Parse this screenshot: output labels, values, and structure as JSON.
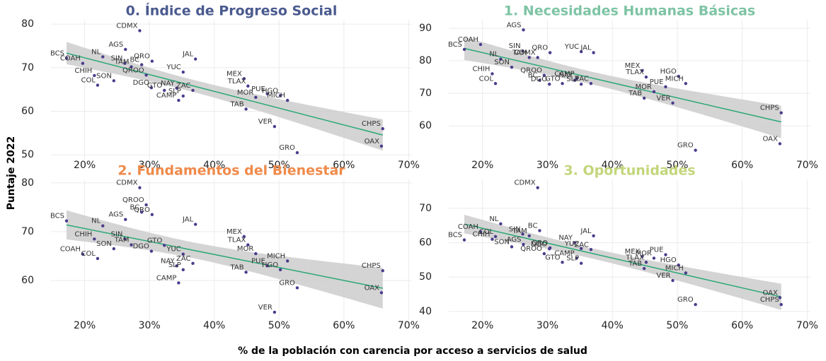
{
  "y_label": "Puntaje 2022",
  "x_label": "% de la población con carencia por acceso a servicios de salud",
  "chart_data": [
    {
      "type": "scatter",
      "title": "0. Índice de Progreso Social",
      "title_color": "#4a5a8f",
      "color": "#4b3b8c",
      "line_color": "#2aa876",
      "band_color": "#cccccc",
      "grid": true,
      "labels": [
        "BCS",
        "COAH",
        "CHIH",
        "COL",
        "NL",
        "SON",
        "SIN",
        "AGS",
        "TAM",
        "CDMX",
        "BC",
        "QROO",
        "QRO",
        "DGO",
        "GTO",
        "NAY",
        "CAMP",
        "SLP",
        "YUC",
        "ZAC",
        "JAL",
        "MEX",
        "TLAX",
        "TAB",
        "MOR",
        "PUE",
        "VER",
        "HGO",
        "MICH",
        "GRO",
        "OAX",
        "CHPS"
      ],
      "x": [
        17.2,
        19.7,
        21.5,
        22,
        22.8,
        24.5,
        26.2,
        26.3,
        27.2,
        28.5,
        28.8,
        29.5,
        30.4,
        30.3,
        32.3,
        34.2,
        34.5,
        35.2,
        35.2,
        36.7,
        37.1,
        44.6,
        45.2,
        44.9,
        46.4,
        48.2,
        49.3,
        50.2,
        51.3,
        52.8,
        65.8,
        66
      ],
      "y": [
        72.2,
        71,
        68.2,
        66,
        72.5,
        67,
        71,
        74.2,
        70.2,
        78.5,
        70.7,
        68.3,
        71.5,
        65.4,
        64.8,
        65.3,
        62.5,
        63.5,
        69,
        64.8,
        72,
        67.5,
        65.8,
        60.5,
        63.2,
        64,
        56.5,
        63.6,
        62.5,
        50.5,
        52,
        56
      ],
      "xlim": [
        14.8,
        70.5
      ],
      "ylim": [
        48.9,
        81
      ],
      "xticks": [
        {
          "value": 20,
          "label": "20%"
        },
        {
          "value": 30,
          "label": "30%"
        },
        {
          "value": 40,
          "label": "40%"
        },
        {
          "value": 50,
          "label": "50%"
        },
        {
          "value": 60,
          "label": "60%"
        },
        {
          "value": 70,
          "label": "70%"
        }
      ],
      "yticks": [
        50,
        60,
        70,
        80
      ]
    },
    {
      "type": "scatter",
      "title": "1. Necesidades Humanas Básicas",
      "title_color": "#7ec4a4",
      "color": "#4b3b8c",
      "line_color": "#2aa876",
      "band_color": "#cccccc",
      "grid": true,
      "labels": [
        "BCS",
        "COAH",
        "CHIH",
        "COL",
        "NL",
        "SON",
        "SIN",
        "AGS",
        "TAM",
        "CDMX",
        "BC",
        "QROO",
        "QRO",
        "DGO",
        "GTO",
        "NAY",
        "CAMP",
        "SLP",
        "YUC",
        "ZAC",
        "JAL",
        "MEX",
        "TLAX",
        "TAB",
        "MOR",
        "PUE",
        "VER",
        "HGO",
        "MICH",
        "GRO",
        "OAX",
        "CHPS"
      ],
      "x": [
        17.2,
        19.7,
        21.5,
        22,
        22.8,
        24.5,
        26.2,
        26.3,
        27.2,
        28.5,
        28.8,
        29.5,
        30.4,
        30.3,
        32.3,
        34.2,
        34.5,
        35.2,
        35.2,
        36.7,
        37.1,
        44.6,
        45.2,
        44.9,
        46.4,
        48.2,
        49.3,
        50.2,
        51.3,
        52.8,
        65.8,
        66
      ],
      "y": [
        83.5,
        85,
        76,
        73,
        80.5,
        78,
        83,
        89.5,
        81,
        81,
        74,
        75.5,
        82.5,
        72.8,
        73,
        74,
        74.5,
        72.8,
        82.8,
        73,
        82.5,
        77,
        75,
        68.5,
        70.5,
        72,
        67,
        75.2,
        73,
        52.5,
        54.5,
        64
      ],
      "xlim": [
        14.8,
        70.5
      ],
      "ylim": [
        49.6,
        92.6
      ],
      "xticks": [
        {
          "value": 20,
          "label": "20%"
        },
        {
          "value": 30,
          "label": "30%"
        },
        {
          "value": 40,
          "label": "40%"
        },
        {
          "value": 50,
          "label": "50%"
        },
        {
          "value": 60,
          "label": "60%"
        },
        {
          "value": 70,
          "label": "70%"
        }
      ],
      "yticks": [
        60,
        70,
        80,
        90
      ]
    },
    {
      "type": "scatter",
      "title": "2. Fundamentos del Bienestar",
      "title_color": "#ef8a4a",
      "color": "#4b3b8c",
      "line_color": "#2aa876",
      "band_color": "#cccccc",
      "grid": true,
      "labels": [
        "BCS",
        "COAH",
        "CHIH",
        "COL",
        "NL",
        "SON",
        "SIN",
        "AGS",
        "TAM",
        "CDMX",
        "BC",
        "QROO",
        "QRO",
        "DGO",
        "GTO",
        "NAY",
        "CAMP",
        "SLP",
        "YUC",
        "ZAC",
        "JAL",
        "MEX",
        "TLAX",
        "TAB",
        "MOR",
        "PUE",
        "VER",
        "HGO",
        "MICH",
        "GRO",
        "OAX",
        "CHPS"
      ],
      "x": [
        17.2,
        19.7,
        21.5,
        22,
        22.8,
        24.5,
        26.2,
        26.3,
        27.2,
        28.5,
        28.8,
        29.5,
        30.4,
        30.3,
        32.3,
        34.2,
        34.5,
        35.2,
        35.2,
        36.7,
        37.1,
        44.6,
        45.2,
        44.9,
        46.4,
        48.2,
        49.3,
        50.2,
        51.3,
        52.8,
        65.8,
        66
      ],
      "y": [
        72.2,
        65.4,
        68.5,
        64.5,
        71.2,
        66.5,
        68.5,
        72.5,
        67.3,
        79,
        74,
        75.5,
        73.5,
        66,
        67.2,
        63,
        59.5,
        62.2,
        65.4,
        63.5,
        71.5,
        69,
        67.3,
        61.7,
        65.5,
        63,
        53.5,
        62.2,
        64,
        58.5,
        57.5,
        62
      ],
      "xlim": [
        14.8,
        70.5
      ],
      "ylim": [
        51.9,
        80.7
      ],
      "xticks": [
        {
          "value": 20,
          "label": "20%"
        },
        {
          "value": 30,
          "label": "30%"
        },
        {
          "value": 40,
          "label": "40%"
        },
        {
          "value": 50,
          "label": "50%"
        },
        {
          "value": 60,
          "label": "60%"
        },
        {
          "value": 70,
          "label": "70%"
        }
      ],
      "yticks": [
        60,
        70,
        80
      ]
    },
    {
      "type": "scatter",
      "title": "3. Oportunidades",
      "title_color": "#c2d67a",
      "color": "#4b3b8c",
      "line_color": "#2aa876",
      "band_color": "#cccccc",
      "grid": true,
      "labels": [
        "BCS",
        "COAH",
        "CHIH",
        "COL",
        "NL",
        "SON",
        "SIN",
        "AGS",
        "TAM",
        "CDMX",
        "BC",
        "QROO",
        "QRO",
        "DGO",
        "GTO",
        "NAY",
        "CAMP",
        "SLP",
        "YUC",
        "ZAC",
        "JAL",
        "MEX",
        "TLAX",
        "TAB",
        "MOR",
        "PUE",
        "VER",
        "HGO",
        "MICH",
        "GRO",
        "OAX",
        "CHPS"
      ],
      "x": [
        17.2,
        19.7,
        21.5,
        22,
        22.8,
        24.5,
        26.2,
        26.3,
        27.2,
        28.5,
        28.8,
        29.5,
        30.4,
        30.3,
        32.3,
        34.2,
        34.5,
        35.2,
        35.2,
        36.7,
        37.1,
        44.6,
        45.2,
        44.9,
        46.4,
        48.2,
        49.3,
        50.2,
        51.3,
        52.8,
        65.8,
        66
      ],
      "y": [
        60.8,
        63.2,
        61,
        61.8,
        65.5,
        58.8,
        62.5,
        59.5,
        62,
        76,
        63.5,
        56.8,
        58.5,
        58.2,
        54.3,
        60,
        55.5,
        54,
        58.3,
        58,
        62,
        56,
        54.3,
        52.5,
        55.5,
        56.5,
        49,
        53.5,
        51.2,
        42,
        44,
        42
      ],
      "xlim": [
        14.8,
        70.5
      ],
      "ylim": [
        37.5,
        78.4
      ],
      "xticks": [
        {
          "value": 20,
          "label": "20%"
        },
        {
          "value": 30,
          "label": "30%"
        },
        {
          "value": 40,
          "label": "40%"
        },
        {
          "value": 50,
          "label": "50%"
        },
        {
          "value": 60,
          "label": "60%"
        },
        {
          "value": 70,
          "label": "70%"
        }
      ],
      "yticks": [
        40,
        50,
        60,
        70
      ]
    }
  ]
}
